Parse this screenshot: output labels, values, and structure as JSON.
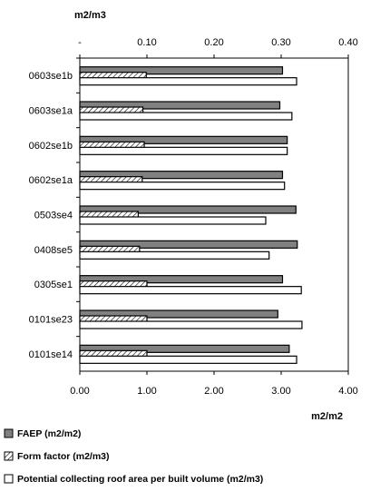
{
  "chart_data": {
    "type": "bar",
    "orientation": "horizontal",
    "categories": [
      "0603se1b",
      "0603se1a",
      "0602se1b",
      "0602se1a",
      "0503se4",
      "0408se5",
      "0305se1",
      "0101se23",
      "0101se14"
    ],
    "series": [
      {
        "name": "FAEP (m2/m2)",
        "axis": "bottom",
        "color": "#808080",
        "pattern": "solid",
        "values": [
          3.02,
          2.98,
          3.09,
          3.02,
          3.22,
          3.24,
          3.02,
          2.95,
          3.12
        ]
      },
      {
        "name": "Form factor (m2/m3)",
        "axis": "top",
        "color": "#ffffff",
        "pattern": "hatch",
        "values": [
          0.099,
          0.094,
          0.096,
          0.093,
          0.087,
          0.089,
          0.1,
          0.1,
          0.1
        ]
      },
      {
        "name": "Potential collecting roof area per built volume (m2/m3)",
        "axis": "top",
        "color": "#ffffff",
        "pattern": "empty",
        "values": [
          0.323,
          0.316,
          0.309,
          0.305,
          0.277,
          0.282,
          0.33,
          0.331,
          0.323
        ]
      }
    ],
    "axis_bottom": {
      "label": "m2/m2",
      "range": [
        0,
        4
      ],
      "ticks": [
        "0.00",
        "1.00",
        "2.00",
        "3.00",
        "4.00"
      ]
    },
    "axis_top": {
      "label": "m2/m3",
      "range": [
        0,
        0.4
      ],
      "ticks": [
        "-",
        "0.10",
        "0.20",
        "0.30",
        "0.40"
      ]
    },
    "grid": false,
    "legend_position": "bottom"
  }
}
